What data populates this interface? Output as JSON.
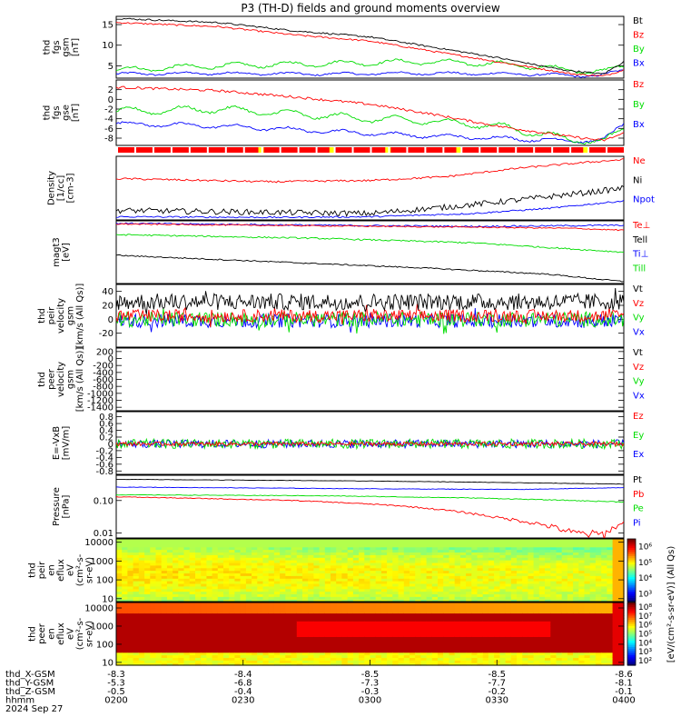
{
  "title": "P3 (TH-D) fields and ground moments overview",
  "date": "2024 Sep 27",
  "colors": {
    "black": "#000000",
    "red": "#ff0000",
    "green": "#00dd00",
    "blue": "#0000ff",
    "yellow": "#ffff00"
  },
  "chart_data": [
    {
      "type": "line",
      "id": "fgs-gsm",
      "ylabel": [
        "thd",
        "fgs",
        "gsm",
        "[nT]"
      ],
      "ylim": [
        2,
        17
      ],
      "yticks": [
        5,
        10,
        15
      ],
      "log": false,
      "series": [
        {
          "name": "Bt",
          "color": "#000000",
          "shape": [
            [
              0,
              16.5
            ],
            [
              0.2,
              15.5
            ],
            [
              0.35,
              13.5
            ],
            [
              0.5,
              12
            ],
            [
              0.6,
              10
            ],
            [
              0.75,
              7
            ],
            [
              0.88,
              4
            ],
            [
              0.96,
              3
            ],
            [
              1,
              6
            ]
          ],
          "noise": 0.2
        },
        {
          "name": "Bz",
          "color": "#ff0000",
          "shape": [
            [
              0,
              15.5
            ],
            [
              0.2,
              14.5
            ],
            [
              0.35,
              12.5
            ],
            [
              0.5,
              11
            ],
            [
              0.6,
              9
            ],
            [
              0.75,
              6
            ],
            [
              0.9,
              3
            ],
            [
              0.96,
              2.5
            ],
            [
              1,
              4
            ]
          ],
          "noise": 0.2
        },
        {
          "name": "By",
          "color": "#00dd00",
          "shape": [
            [
              0,
              4
            ],
            [
              0.2,
              5
            ],
            [
              0.4,
              5.5
            ],
            [
              0.6,
              6
            ],
            [
              0.75,
              5.5
            ],
            [
              0.9,
              4
            ],
            [
              0.96,
              3.5
            ],
            [
              1,
              5
            ]
          ],
          "noise": 0.25,
          "wave": 0.6
        },
        {
          "name": "Bx",
          "color": "#0000ff",
          "shape": [
            [
              0,
              3
            ],
            [
              0.2,
              3.2
            ],
            [
              0.4,
              3
            ],
            [
              0.6,
              3.2
            ],
            [
              0.8,
              3
            ],
            [
              0.95,
              2.5
            ],
            [
              1,
              4
            ]
          ],
          "noise": 0.2,
          "wave": 0.3
        }
      ]
    },
    {
      "type": "line",
      "id": "fgs-gse",
      "ylabel": [
        "thd",
        "fgs",
        "gse",
        "[nT]"
      ],
      "ylim": [
        -9.5,
        4
      ],
      "yticks": [
        -8,
        -6,
        -4,
        -2,
        0,
        2
      ],
      "log": false,
      "series": [
        {
          "name": "Bz",
          "color": "#ff0000",
          "shape": [
            [
              0,
              2.5
            ],
            [
              0.2,
              1.8
            ],
            [
              0.35,
              0.5
            ],
            [
              0.5,
              -1
            ],
            [
              0.62,
              -3
            ],
            [
              0.75,
              -5.5
            ],
            [
              0.88,
              -7.5
            ],
            [
              0.96,
              -8.5
            ],
            [
              1,
              -7
            ]
          ],
          "noise": 0.25
        },
        {
          "name": "By",
          "color": "#00dd00",
          "shape": [
            [
              0,
              -2.5
            ],
            [
              0.2,
              -2
            ],
            [
              0.35,
              -3
            ],
            [
              0.5,
              -4
            ],
            [
              0.62,
              -4.5
            ],
            [
              0.75,
              -5.5
            ],
            [
              0.88,
              -8
            ],
            [
              0.96,
              -8.8
            ],
            [
              1,
              -6
            ]
          ],
          "noise": 0.25,
          "wave": 0.7
        },
        {
          "name": "Bx",
          "color": "#0000ff",
          "shape": [
            [
              0,
              -5
            ],
            [
              0.2,
              -5.5
            ],
            [
              0.4,
              -6.5
            ],
            [
              0.6,
              -7.5
            ],
            [
              0.75,
              -8
            ],
            [
              0.88,
              -8.5
            ],
            [
              0.96,
              -8.5
            ],
            [
              1,
              -5
            ]
          ],
          "noise": 0.2,
          "wave": 0.4
        }
      ]
    },
    {
      "type": "line",
      "id": "density",
      "ylabel": [
        "Density",
        "[1/cc]",
        "[cm-3]"
      ],
      "ylim": [
        0,
        1
      ],
      "yticks": [],
      "log": false,
      "series": [
        {
          "name": "Ne",
          "color": "#ff0000",
          "shape": [
            [
              0,
              0.65
            ],
            [
              0.3,
              0.6
            ],
            [
              0.5,
              0.62
            ],
            [
              0.65,
              0.68
            ],
            [
              0.8,
              0.82
            ],
            [
              0.95,
              0.92
            ],
            [
              1,
              0.95
            ]
          ],
          "noise": 0.015
        },
        {
          "name": "Ni",
          "color": "#000000",
          "shape": [
            [
              0,
              0.15
            ],
            [
              0.3,
              0.12
            ],
            [
              0.5,
              0.1
            ],
            [
              0.65,
              0.2
            ],
            [
              0.8,
              0.32
            ],
            [
              0.95,
              0.45
            ],
            [
              1,
              0.5
            ]
          ],
          "noise": 0.045
        },
        {
          "name": "Npot",
          "color": "#0000ff",
          "shape": [
            [
              0,
              0.05
            ],
            [
              0.3,
              0.04
            ],
            [
              0.5,
              0.05
            ],
            [
              0.7,
              0.1
            ],
            [
              0.85,
              0.18
            ],
            [
              1,
              0.3
            ]
          ],
          "noise": 0.012
        }
      ]
    },
    {
      "type": "line",
      "id": "temperature",
      "ylabel": [
        "magt3",
        "[eV]"
      ],
      "ylim": [
        0,
        1
      ],
      "yticks": [
        1000
      ],
      "log": true,
      "series": [
        {
          "name": "Te⊥",
          "color": "#ff0000",
          "shape": [
            [
              0,
              0.95
            ],
            [
              0.4,
              0.92
            ],
            [
              0.7,
              0.9
            ],
            [
              0.9,
              0.88
            ],
            [
              1,
              0.85
            ]
          ],
          "noise": 0.01
        },
        {
          "name": "Tell",
          "color": "#000000",
          "shape": [
            [
              0,
              0.45
            ],
            [
              0.3,
              0.35
            ],
            [
              0.6,
              0.25
            ],
            [
              0.85,
              0.15
            ],
            [
              1,
              0.03
            ]
          ],
          "noise": 0.01
        },
        {
          "name": "Ti⊥",
          "color": "#0000ff",
          "shape": [
            [
              0,
              0.96
            ],
            [
              0.4,
              0.93
            ],
            [
              0.7,
              0.91
            ],
            [
              1,
              0.93
            ]
          ],
          "noise": 0.012
        },
        {
          "name": "Till",
          "color": "#00dd00",
          "shape": [
            [
              0,
              0.78
            ],
            [
              0.4,
              0.72
            ],
            [
              0.7,
              0.65
            ],
            [
              0.9,
              0.55
            ],
            [
              1,
              0.5
            ]
          ],
          "noise": 0.012
        }
      ]
    },
    {
      "type": "line",
      "id": "peir-velocity",
      "ylabel": [
        "thd",
        "peir",
        "velocity",
        "gsm",
        "[km/s (All Qs)]"
      ],
      "ylim": [
        -40,
        50
      ],
      "yticks": [
        -20,
        0,
        20,
        40
      ],
      "log": false,
      "series": [
        {
          "name": "Vt",
          "color": "#000000",
          "shape": [
            [
              0,
              25
            ],
            [
              1,
              25
            ]
          ],
          "noise": 12
        },
        {
          "name": "Vz",
          "color": "#ff0000",
          "shape": [
            [
              0,
              5
            ],
            [
              1,
              5
            ]
          ],
          "noise": 9
        },
        {
          "name": "Vy",
          "color": "#00dd00",
          "shape": [
            [
              0,
              0
            ],
            [
              1,
              0
            ]
          ],
          "noise": 11
        },
        {
          "name": "Vx",
          "color": "#0000ff",
          "shape": [
            [
              0,
              -2
            ],
            [
              1,
              -2
            ]
          ],
          "noise": 10
        }
      ]
    },
    {
      "type": "line",
      "id": "peer-velocity",
      "ylabel": [
        "thd",
        "peer",
        "velocity",
        "gsm",
        "[km/s (All Qs)]"
      ],
      "ylim": [
        -1500,
        300
      ],
      "yticks": [
        -1400,
        -1200,
        -1000,
        -800,
        -600,
        -400,
        -200,
        0,
        200
      ],
      "log": false,
      "series": [
        {
          "name": "Vt",
          "color": "#000000",
          "shape": [],
          "noise": 0
        },
        {
          "name": "Vz",
          "color": "#ff0000",
          "shape": [],
          "noise": 0
        },
        {
          "name": "Vy",
          "color": "#00dd00",
          "shape": [],
          "noise": 0
        },
        {
          "name": "Vx",
          "color": "#0000ff",
          "shape": [],
          "noise": 0
        }
      ]
    },
    {
      "type": "line",
      "id": "efield",
      "ylabel": [
        "E=-VxB",
        "[mV/m]"
      ],
      "ylim": [
        -0.9,
        0.95
      ],
      "yticks": [
        -0.8,
        -0.6,
        -0.4,
        -0.2,
        0.0,
        0.2,
        0.4,
        0.6,
        0.8
      ],
      "log": false,
      "series": [
        {
          "name": "Ez",
          "color": "#ff0000",
          "shape": [
            [
              0,
              0
            ],
            [
              1,
              0
            ]
          ],
          "noise": 0.06
        },
        {
          "name": "Ey",
          "color": "#00dd00",
          "shape": [
            [
              0,
              0
            ],
            [
              1,
              0
            ]
          ],
          "noise": 0.14
        },
        {
          "name": "Ex",
          "color": "#0000ff",
          "shape": [
            [
              0,
              0
            ],
            [
              1,
              0
            ]
          ],
          "noise": 0.12
        }
      ]
    },
    {
      "type": "line",
      "id": "pressure",
      "ylabel": [
        "Pressure",
        "[nPa]"
      ],
      "ylim": [
        0.007,
        0.6
      ],
      "yticks": [
        0.01,
        0.1
      ],
      "ytick_labels": [
        "0.01",
        "0.10"
      ],
      "log": true,
      "series": [
        {
          "name": "Pt",
          "color": "#000000",
          "shape": [
            [
              0,
              0.45
            ],
            [
              0.5,
              0.4
            ],
            [
              1,
              0.32
            ]
          ],
          "noise": 0.005
        },
        {
          "name": "Pb",
          "color": "#ff0000",
          "shape": [
            [
              0,
              0.13
            ],
            [
              0.35,
              0.1
            ],
            [
              0.55,
              0.07
            ],
            [
              0.75,
              0.03
            ],
            [
              0.9,
              0.01
            ],
            [
              0.96,
              0.009
            ],
            [
              1,
              0.02
            ]
          ],
          "noise": 0.003
        },
        {
          "name": "Pe",
          "color": "#00dd00",
          "shape": [
            [
              0,
              0.15
            ],
            [
              0.4,
              0.14
            ],
            [
              0.7,
              0.12
            ],
            [
              0.9,
              0.1
            ],
            [
              1,
              0.09
            ]
          ],
          "noise": 0.003
        },
        {
          "name": "Pi",
          "color": "#0000ff",
          "shape": [
            [
              0,
              0.26
            ],
            [
              0.5,
              0.23
            ],
            [
              0.8,
              0.22
            ],
            [
              1,
              0.25
            ]
          ],
          "noise": 0.004
        }
      ]
    },
    {
      "type": "heatmap",
      "id": "peir-spectrogram",
      "ylabel": [
        "thd",
        "peir",
        "en",
        "eflux",
        "eV",
        "(cm²-s-",
        "sr-eV)"
      ],
      "ylim": [
        7,
        15000
      ],
      "yticks": [
        10,
        100,
        1000,
        10000
      ],
      "ytick_labels": [
        "10",
        "100",
        "1000",
        "10000"
      ],
      "log": true,
      "colorbar": {
        "ticks": [
          "10³",
          "10⁴",
          "10⁵",
          "10⁶"
        ],
        "min": 2.5,
        "max": 6.5
      }
    },
    {
      "type": "heatmap",
      "id": "peer-spectrogram",
      "ylabel": [
        "thd",
        "peer",
        "en",
        "eflux",
        "eV",
        "(cm²-s-",
        "sr-eV)"
      ],
      "ylim": [
        7,
        20000
      ],
      "yticks": [
        10,
        100,
        1000,
        10000
      ],
      "ytick_labels": [
        "10",
        "100",
        "1000",
        "10000"
      ],
      "log": true,
      "colorbar": {
        "ticks": [
          "10²",
          "10³",
          "10⁴",
          "10⁵",
          "10⁶",
          "10⁷",
          "10⁸"
        ],
        "min": 1.5,
        "max": 8.5
      }
    }
  ],
  "colorbar_label": "[eV/(cm²-s-sr-eV)] (All Qs)",
  "x_axis": {
    "ticks": [
      "0200",
      "0230",
      "0300",
      "0330",
      "0400"
    ],
    "rows": [
      {
        "label": "thd_X-GSM",
        "values": [
          "-8.3",
          "-8.4",
          "-8.5",
          "-8.5",
          "-8.6"
        ]
      },
      {
        "label": "thd_Y-GSM",
        "values": [
          "-5.3",
          "-6.8",
          "-7.3",
          "-7.7",
          "-8.1"
        ]
      },
      {
        "label": "thd_Z-GSM",
        "values": [
          "-0.5",
          "-0.4",
          "-0.3",
          "-0.2",
          "-0.1"
        ]
      },
      {
        "label": "hhmm",
        "values": [
          "0200",
          "0230",
          "0300",
          "0330",
          "0400"
        ]
      }
    ]
  },
  "mode_bar": {
    "color_default": "#ff0000",
    "yellow_marks": [
      0.28,
      0.42,
      0.53,
      0.67,
      0.92
    ]
  }
}
